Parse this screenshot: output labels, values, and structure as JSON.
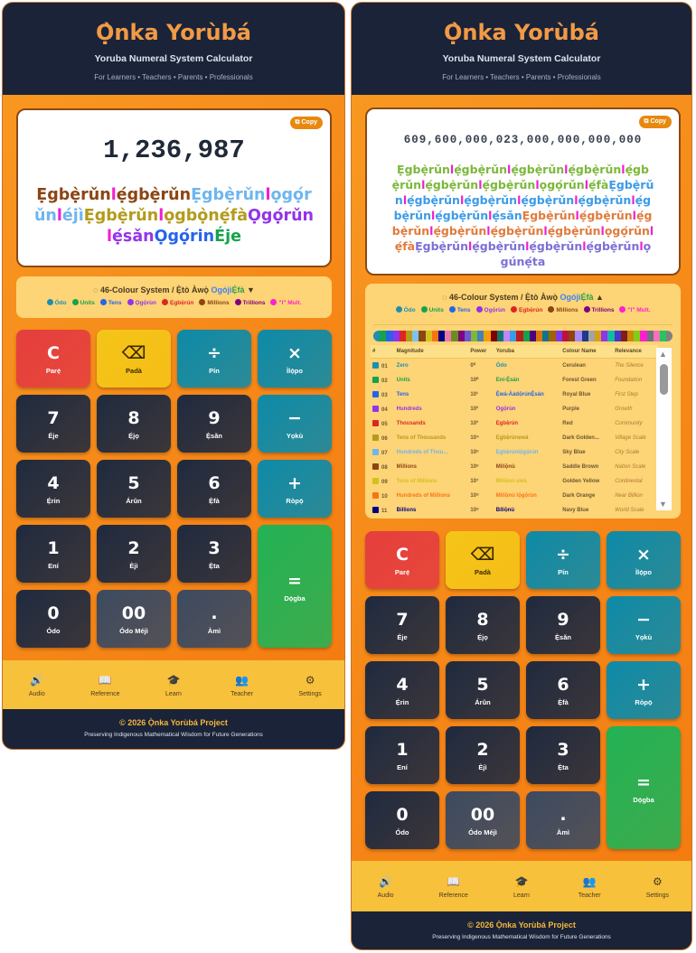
{
  "header": {
    "title": "Ọ̀nka Yorùbá",
    "subtitle": "Yoruba Numeral System Calculator",
    "audience": "For Learners • Teachers • Parents • Professionals"
  },
  "copy_label": "Copy",
  "connector_color": "#f01fd0",
  "left_display": {
    "number": "1,236,987",
    "segments": [
      {
        "t": "Ẹgbẹ̀rǔn",
        "c": "#8b4513"
      },
      {
        "t": "l",
        "c": "#f01fd0"
      },
      {
        "t": "ẹ́gbẹ̀rǔn",
        "c": "#8b4513"
      },
      {
        "t": "Ẹgbẹ̀rǔn",
        "c": "#6fb6ee"
      },
      {
        "t": "l",
        "c": "#f01fd0"
      },
      {
        "t": "ọgọ́rǔn",
        "c": "#6fb6ee"
      },
      {
        "t": "l",
        "c": "#f01fd0"
      },
      {
        "t": "éjì",
        "c": "#6fb6ee"
      },
      {
        "t": "Ẹgbẹ̀rǔn",
        "c": "#b39b1c"
      },
      {
        "t": "l",
        "c": "#f01fd0"
      },
      {
        "t": "ọgbọ̀nẹ́fà",
        "c": "#b39b1c"
      },
      {
        "t": "Ọgọ́rǔn",
        "c": "#9333ea"
      },
      {
        "t": "l",
        "c": "#f01fd0"
      },
      {
        "t": "ẹ́sǎn",
        "c": "#9333ea"
      },
      {
        "t": "Ọgọ́rin",
        "c": "#2563eb"
      },
      {
        "t": "Éje",
        "c": "#16a34a"
      }
    ]
  },
  "right_display": {
    "number": "609,600,000,023,000,000,000,000",
    "segments": [
      {
        "t": "Ẹgbẹ̀rǔn",
        "c": "#7cb83a"
      },
      {
        "t": "l",
        "c": "#f01fd0"
      },
      {
        "t": "ẹ́gbẹ̀rǔn",
        "c": "#7cb83a"
      },
      {
        "t": "l",
        "c": "#f01fd0"
      },
      {
        "t": "ẹ́gbẹ̀rǔn",
        "c": "#7cb83a"
      },
      {
        "t": "l",
        "c": "#f01fd0"
      },
      {
        "t": "ẹ́gbẹ̀rǔn",
        "c": "#7cb83a"
      },
      {
        "t": "l",
        "c": "#f01fd0"
      },
      {
        "t": "ẹ́gbẹ̀rǔn",
        "c": "#7cb83a"
      },
      {
        "t": "l",
        "c": "#f01fd0"
      },
      {
        "t": "ẹ́gbẹ̀rǔn",
        "c": "#7cb83a"
      },
      {
        "t": "l",
        "c": "#f01fd0"
      },
      {
        "t": "ẹ́gbẹ̀rǔn",
        "c": "#7cb83a"
      },
      {
        "t": "l",
        "c": "#f01fd0"
      },
      {
        "t": "ọgọ́rǔn",
        "c": "#7cb83a"
      },
      {
        "t": "l",
        "c": "#f01fd0"
      },
      {
        "t": "ẹ́fà",
        "c": "#7cb83a"
      },
      {
        "t": "Ẹgbẹ̀rǔn",
        "c": "#3b9be8"
      },
      {
        "t": "l",
        "c": "#f01fd0"
      },
      {
        "t": "ẹ́gbẹ̀rǔn",
        "c": "#3b9be8"
      },
      {
        "t": "l",
        "c": "#f01fd0"
      },
      {
        "t": "ẹ́gbẹ̀rǔn",
        "c": "#3b9be8"
      },
      {
        "t": "l",
        "c": "#f01fd0"
      },
      {
        "t": "ẹ́gbẹ̀rǔn",
        "c": "#3b9be8"
      },
      {
        "t": "l",
        "c": "#f01fd0"
      },
      {
        "t": "ẹ́gbẹ̀rǔn",
        "c": "#3b9be8"
      },
      {
        "t": "l",
        "c": "#f01fd0"
      },
      {
        "t": "ẹ́gbẹ̀rǔn",
        "c": "#3b9be8"
      },
      {
        "t": "l",
        "c": "#f01fd0"
      },
      {
        "t": "ẹ́gbẹ̀rǔn",
        "c": "#3b9be8"
      },
      {
        "t": "l",
        "c": "#f01fd0"
      },
      {
        "t": "ẹ́sǎn",
        "c": "#3b9be8"
      },
      {
        "t": "Ẹgbẹ̀rǔn",
        "c": "#e07b3c"
      },
      {
        "t": "l",
        "c": "#f01fd0"
      },
      {
        "t": "ẹ́gbẹ̀rǔn",
        "c": "#e07b3c"
      },
      {
        "t": "l",
        "c": "#f01fd0"
      },
      {
        "t": "ẹ́gbẹ̀rǔn",
        "c": "#e07b3c"
      },
      {
        "t": "l",
        "c": "#f01fd0"
      },
      {
        "t": "ẹ́gbẹ̀rǔn",
        "c": "#e07b3c"
      },
      {
        "t": "l",
        "c": "#f01fd0"
      },
      {
        "t": "ẹ́gbẹ̀rǔn",
        "c": "#e07b3c"
      },
      {
        "t": "l",
        "c": "#f01fd0"
      },
      {
        "t": "ẹ́gbẹ̀rǔn",
        "c": "#e07b3c"
      },
      {
        "t": "l",
        "c": "#f01fd0"
      },
      {
        "t": "ọgọ́rǔn",
        "c": "#e07b3c"
      },
      {
        "t": "l",
        "c": "#f01fd0"
      },
      {
        "t": "ẹ́fà",
        "c": "#e07b3c"
      },
      {
        "t": "Ẹgbẹ̀rǔn",
        "c": "#7b6fd6"
      },
      {
        "t": "l",
        "c": "#f01fd0"
      },
      {
        "t": "ẹ́gbẹ̀rǔn",
        "c": "#7b6fd6"
      },
      {
        "t": "l",
        "c": "#f01fd0"
      },
      {
        "t": "ẹ́gbẹ̀rǔn",
        "c": "#7b6fd6"
      },
      {
        "t": "l",
        "c": "#f01fd0"
      },
      {
        "t": "ẹ́gbẹ̀rǔn",
        "c": "#7b6fd6"
      },
      {
        "t": "l",
        "c": "#f01fd0"
      },
      {
        "t": "ọgúnẹ́ta",
        "c": "#7b6fd6"
      }
    ]
  },
  "legend": {
    "icon": "palette-icon",
    "title_a": "46-Colour System / Ẹ̀tò Àwọ̀ ",
    "title_o": "Ogójì",
    "title_e": "Ẹ́fà",
    "arrow_collapsed": "▼",
    "arrow_expanded": "▲",
    "items": [
      {
        "label": "Ódo",
        "color": "#1e8fb0"
      },
      {
        "label": "Units",
        "color": "#16a34a"
      },
      {
        "label": "Tens",
        "color": "#2563eb"
      },
      {
        "label": "Ọgọ́rùn",
        "color": "#9333ea"
      },
      {
        "label": "Ẹgbẹ̀rún",
        "color": "#dc2626"
      },
      {
        "label": "Millions",
        "color": "#8b4513"
      },
      {
        "label": "Trillions",
        "color": "#800080"
      },
      {
        "label": "\"l\" Mult.",
        "color": "#ff1fd0"
      }
    ]
  },
  "strip_colors": [
    "#1e8fb0",
    "#16a34a",
    "#2563eb",
    "#9333ea",
    "#dc2626",
    "#b39b1c",
    "#7cc4f0",
    "#8b4513",
    "#d4c21c",
    "#f97316",
    "#000080",
    "#e879a9",
    "#6b8e23",
    "#800080",
    "#6a5acd",
    "#7cb83a",
    "#4682b4",
    "#f59e0b",
    "#800000",
    "#0f766e",
    "#c084fc",
    "#3b9be8",
    "#b91c1c",
    "#16a34a",
    "#4b0082",
    "#d97706",
    "#0e7490",
    "#a16207",
    "#7c3aed",
    "#be123c",
    "#8b4513",
    "#a78bfa",
    "#1e3a8a",
    "#a3a3a3",
    "#d4a017",
    "#9333ea",
    "#14b8a6",
    "#4338ca",
    "#7f1d1d",
    "#ca8a04",
    "#84cc16",
    "#ff1fd0",
    "#6b7280",
    "#f472b6",
    "#22c55e",
    "#808080"
  ],
  "table": {
    "headers": [
      "#",
      "Magnitude",
      "Power",
      "Yoruba",
      "Colour Name",
      "Relevance"
    ],
    "rows": [
      {
        "n": "01",
        "mag": "Zero",
        "pow": "0⁰",
        "yor": "Ódo",
        "cname": "Cerulean",
        "rel": "The Silence",
        "color": "#1e8fb0"
      },
      {
        "n": "02",
        "mag": "Units",
        "pow": "10⁰",
        "yor": "Ení-Ẹ̀sán",
        "cname": "Forest Green",
        "rel": "Foundation",
        "color": "#16a34a"
      },
      {
        "n": "03",
        "mag": "Tens",
        "pow": "10¹",
        "yor": "Ẹ̀wá-Àádọ́rúnẸ̀sán",
        "cname": "Royal Blue",
        "rel": "First Step",
        "color": "#2563eb"
      },
      {
        "n": "04",
        "mag": "Hundreds",
        "pow": "10²",
        "yor": "Ọgọ́rùn",
        "cname": "Purple",
        "rel": "Growth",
        "color": "#9333ea"
      },
      {
        "n": "05",
        "mag": "Thousands",
        "pow": "10³",
        "yor": "Ẹgbẹ̀rún",
        "cname": "Red",
        "rel": "Community",
        "color": "#dc2626"
      },
      {
        "n": "06",
        "mag": "Tens of Thousands",
        "pow": "10⁴",
        "yor": "Ẹgbẹ̀rúnẹwá",
        "cname": "Dark Golden...",
        "rel": "Village Scale",
        "color": "#b39b1c"
      },
      {
        "n": "07",
        "mag": "Hundreds of Thou...",
        "pow": "10⁵",
        "yor": "Ẹgbẹ̀rúnlọ́gọ́rùn",
        "cname": "Sky Blue",
        "rel": "City Scale",
        "color": "#6fb6ee"
      },
      {
        "n": "08",
        "mag": "Millions",
        "pow": "10⁶",
        "yor": "Mílíọ̀nù",
        "cname": "Saddle Brown",
        "rel": "Nation Scale",
        "color": "#8b4513"
      },
      {
        "n": "09",
        "mag": "Tens of Millions",
        "pow": "10⁷",
        "yor": "Mílíọ̀nù ẹwá",
        "cname": "Golden Yellow",
        "rel": "Continental",
        "color": "#d4c21c"
      },
      {
        "n": "10",
        "mag": "Hundreds of Millions",
        "pow": "10⁸",
        "yor": "Mílíọ̀nù lọ́gọ́rùn",
        "cname": "Dark Orange",
        "rel": "Near Billion",
        "color": "#f97316"
      },
      {
        "n": "11",
        "mag": "Billions",
        "pow": "10⁹",
        "yor": "Bílíọ̀nù",
        "cname": "Navy Blue",
        "rel": "World Scale",
        "color": "#000080"
      }
    ]
  },
  "keypad": [
    {
      "g": "C",
      "l": "Parẹ́",
      "bg": "#e53e3e",
      "name": "clear-button"
    },
    {
      "g": "⌫",
      "l": "Padà",
      "bg": "#f5c518",
      "fg": "#3a2a00",
      "name": "backspace-button"
    },
    {
      "g": "÷",
      "l": "Pín",
      "bg": "#0e8aa8",
      "name": "divide-button"
    },
    {
      "g": "×",
      "l": "Ìlọ́po",
      "bg": "#0e8aa8",
      "name": "multiply-button"
    },
    {
      "g": "7",
      "l": "Éje",
      "bg": "#1f2a3f",
      "name": "digit-7-button"
    },
    {
      "g": "8",
      "l": "Ẹ́jọ",
      "bg": "#1f2a3f",
      "name": "digit-8-button"
    },
    {
      "g": "9",
      "l": "Ẹ̀sǎn",
      "bg": "#1f2a3f",
      "name": "digit-9-button"
    },
    {
      "g": "−",
      "l": "Yọkù",
      "bg": "#0e8aa8",
      "name": "subtract-button"
    },
    {
      "g": "4",
      "l": "Ẹ́rin",
      "bg": "#1f2a3f",
      "name": "digit-4-button"
    },
    {
      "g": "5",
      "l": "Árǔn",
      "bg": "#1f2a3f",
      "name": "digit-5-button"
    },
    {
      "g": "6",
      "l": "Ẹ̀fà",
      "bg": "#1f2a3f",
      "name": "digit-6-button"
    },
    {
      "g": "+",
      "l": "Ròpọ̀",
      "bg": "#0e8aa8",
      "name": "add-button"
    },
    {
      "g": "1",
      "l": "Ení",
      "bg": "#1f2a3f",
      "name": "digit-1-button"
    },
    {
      "g": "2",
      "l": "Èjì",
      "bg": "#1f2a3f",
      "name": "digit-2-button"
    },
    {
      "g": "3",
      "l": "Ẹ̀ta",
      "bg": "#1f2a3f",
      "name": "digit-3-button"
    },
    {
      "g": "=",
      "l": "Dọ́gba",
      "bg": "#22b255",
      "name": "equals-button",
      "tall": true
    },
    {
      "g": "0",
      "l": "Ódo",
      "bg": "#1f2a3f",
      "name": "digit-0-button"
    },
    {
      "g": "00",
      "l": "Ódo Méjì",
      "bg": "#3c4a60",
      "name": "double-zero-button"
    },
    {
      "g": ".",
      "l": "Àmì",
      "bg": "#3c4a60",
      "name": "decimal-button"
    }
  ],
  "nav": [
    {
      "icon": "🔊",
      "label": "Audio",
      "name": "speaker-icon"
    },
    {
      "icon": "📖",
      "label": "Reference",
      "name": "book-icon"
    },
    {
      "icon": "🎓",
      "label": "Learn",
      "name": "graduation-cap-icon"
    },
    {
      "icon": "👥",
      "label": "Teacher",
      "name": "teacher-icon"
    },
    {
      "icon": "⚙",
      "label": "Settings",
      "name": "gear-icon"
    }
  ],
  "footer": {
    "copyright": "© 2026 Ọ̀nka Yorùbá Project",
    "tagline": "Preserving Indigenous Mathematical Wisdom for Future Generations"
  }
}
